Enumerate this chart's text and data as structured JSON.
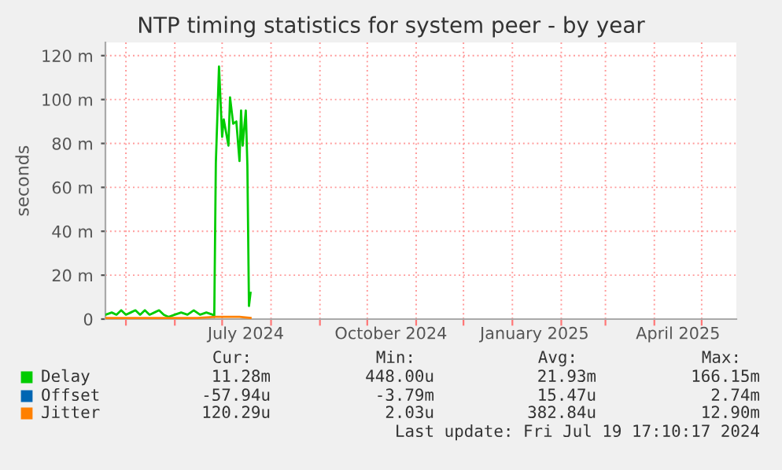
{
  "chart_data": {
    "type": "line",
    "title": "NTP timing statistics for system peer - by year",
    "ylabel": "seconds",
    "xlim": [
      "2024-04-18",
      "2025-05-23"
    ],
    "ylim": [
      0,
      126
    ],
    "xticks": [
      {
        "value": "2024-05-01",
        "label": null
      },
      {
        "value": "2024-06-01",
        "label": null
      },
      {
        "value": "2024-07-01",
        "label": null
      },
      {
        "value": "2024-08-01",
        "label": null
      },
      {
        "value": "2024-09-01",
        "label": null
      },
      {
        "value": "2024-10-01",
        "label": null
      },
      {
        "value": "2024-11-01",
        "label": null
      },
      {
        "value": "2024-12-01",
        "label": null
      },
      {
        "value": "2025-01-01",
        "label": null
      },
      {
        "value": "2025-02-01",
        "label": null
      },
      {
        "value": "2025-03-01",
        "label": null
      },
      {
        "value": "2025-04-01",
        "label": null
      },
      {
        "value": "2025-05-01",
        "label": null
      },
      {
        "value": "2024-07-16",
        "label": "July 2024"
      },
      {
        "value": "2024-10-16",
        "label": "October 2024"
      },
      {
        "value": "2025-01-15",
        "label": "January 2025"
      },
      {
        "value": "2025-04-16",
        "label": "April 2025"
      }
    ],
    "yticks": [
      0,
      {
        "value": 20,
        "label": "20 m"
      },
      {
        "value": 40,
        "label": "40 m"
      },
      {
        "value": 60,
        "label": "60 m"
      },
      {
        "value": 80,
        "label": "80 m"
      },
      {
        "value": 100,
        "label": "100 m"
      },
      {
        "value": 120,
        "label": "120 m"
      }
    ],
    "grid": true,
    "legend": "bottom",
    "series": [
      {
        "name": "Delay",
        "color": "#00cc00",
        "x": [
          "2024-04-18",
          "2024-04-22",
          "2024-04-25",
          "2024-04-28",
          "2024-05-01",
          "2024-05-04",
          "2024-05-07",
          "2024-05-10",
          "2024-05-13",
          "2024-05-16",
          "2024-05-19",
          "2024-05-22",
          "2024-05-25",
          "2024-05-28",
          "2024-06-01",
          "2024-06-05",
          "2024-06-09",
          "2024-06-13",
          "2024-06-17",
          "2024-06-21",
          "2024-06-25",
          "2024-06-26",
          "2024-06-27",
          "2024-06-29",
          "2024-07-01",
          "2024-07-02",
          "2024-07-05",
          "2024-07-06",
          "2024-07-08",
          "2024-07-10",
          "2024-07-12",
          "2024-07-13",
          "2024-07-14",
          "2024-07-16",
          "2024-07-17",
          "2024-07-18",
          "2024-07-19"
        ],
        "values": [
          2,
          3,
          2,
          4,
          2,
          3,
          4,
          2,
          4,
          2,
          3,
          4,
          2,
          1,
          2,
          3,
          2,
          4,
          2,
          3,
          2,
          1,
          71,
          115,
          83,
          91,
          79,
          101,
          89,
          90,
          72,
          95,
          79,
          95,
          70,
          6,
          12
        ]
      },
      {
        "name": "Offset",
        "color": "#0066b3"
      },
      {
        "name": "Jitter",
        "color": "#ff8000",
        "x": [
          "2024-04-18",
          "2024-05-15",
          "2024-06-15",
          "2024-06-27",
          "2024-07-05",
          "2024-07-12",
          "2024-07-19"
        ],
        "values": [
          0.5,
          0.5,
          0.5,
          1,
          1,
          1,
          0.5
        ]
      }
    ],
    "annotations": [
      "Cur:",
      "Min:",
      "Avg:",
      "Max:",
      "11.28m",
      "448.00u",
      "21.93m",
      "166.15m",
      "-57.94u",
      "-3.79m",
      "15.47u",
      "2.74m",
      "120.29u",
      "2.03u",
      "382.84u",
      "12.90m",
      "Last update: Fri Jul 19 17:10:17 2024"
    ]
  }
}
